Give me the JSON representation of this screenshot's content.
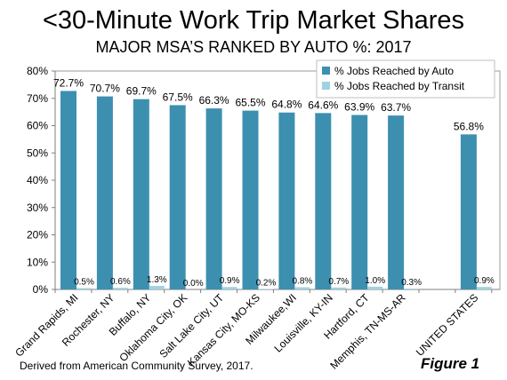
{
  "header": {
    "title": "<30-Minute Work Trip Market Shares",
    "subtitle": "MAJOR MSA’S RANKED BY AUTO %:  2017"
  },
  "footer": {
    "source": "Derived from American Community Survey, 2017.",
    "figure_label": "Figure 1"
  },
  "colors": {
    "auto": "#3d8fb0",
    "transit": "#9fd3e0",
    "axis": "#7f7f7f",
    "plot_border": "#999999"
  },
  "chart_data": {
    "type": "bar",
    "title": "<30-Minute Work Trip Market Shares",
    "subtitle": "MAJOR MSA’S RANKED BY AUTO %:  2017",
    "categories": [
      "Grand Rapids, MI",
      "Rochester, NY",
      "Buffalo, NY",
      "Oklahoma City, OK",
      "Salt Lake City, UT",
      "Kansas City, MO-KS",
      "Milwaukee,WI",
      "Louisville, KY-IN",
      "Hartford, CT",
      "Memphis, TN-MS-AR",
      "",
      "UNITED STATES"
    ],
    "series": [
      {
        "name": "% Jobs Reached by Auto",
        "values": [
          72.7,
          70.7,
          69.7,
          67.5,
          66.3,
          65.5,
          64.8,
          64.6,
          63.9,
          63.7,
          null,
          56.8
        ],
        "labels": [
          "72.7%",
          "70.7%",
          "69.7%",
          "67.5%",
          "66.3%",
          "65.5%",
          "64.8%",
          "64.6%",
          "63.9%",
          "63.7%",
          "",
          "56.8%"
        ]
      },
      {
        "name": "% Jobs Reached by Transit",
        "values": [
          0.5,
          0.6,
          1.3,
          0.0,
          0.9,
          0.2,
          0.8,
          0.7,
          1.0,
          0.3,
          null,
          0.9
        ],
        "labels": [
          "0.5%",
          "0.6%",
          "1.3%",
          "0.0%",
          "0.9%",
          "0.2%",
          "0.8%",
          "0.7%",
          "1.0%",
          "0.3%",
          "",
          "0.9%"
        ]
      }
    ],
    "ylim": [
      0,
      80
    ],
    "yticks": [
      "0%",
      "10%",
      "20%",
      "30%",
      "40%",
      "50%",
      "60%",
      "70%",
      "80%"
    ],
    "xlabel": "",
    "ylabel": "",
    "grid": false,
    "legend": "top-right"
  }
}
